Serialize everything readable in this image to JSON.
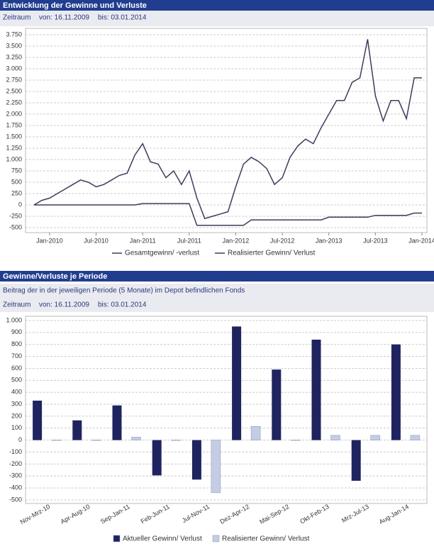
{
  "chart_data": [
    {
      "type": "line",
      "title": "Entwicklung der Gewinne und Verluste",
      "period": {
        "label": "Zeitraum",
        "from": "von: 16.11.2009",
        "to": "bis: 03.01.2014"
      },
      "x": [
        "Nov-2009",
        "Dec-2009",
        "Jan-2010",
        "Feb-2010",
        "Mar-2010",
        "Apr-2010",
        "May-2010",
        "Jun-2010",
        "Jul-2010",
        "Aug-2010",
        "Sep-2010",
        "Oct-2010",
        "Nov-2010",
        "Dec-2010",
        "Jan-2011",
        "Feb-2011",
        "Mar-2011",
        "Apr-2011",
        "May-2011",
        "Jun-2011",
        "Jul-2011",
        "Aug-2011",
        "Sep-2011",
        "Oct-2011",
        "Nov-2011",
        "Dec-2011",
        "Jan-2012",
        "Feb-2012",
        "Mar-2012",
        "Apr-2012",
        "May-2012",
        "Jun-2012",
        "Jul-2012",
        "Aug-2012",
        "Sep-2012",
        "Oct-2012",
        "Nov-2012",
        "Dec-2012",
        "Jan-2013",
        "Feb-2013",
        "Mar-2013",
        "Apr-2013",
        "May-2013",
        "Jun-2013",
        "Jul-2013",
        "Aug-2013",
        "Sep-2013",
        "Oct-2013",
        "Nov-2013",
        "Dec-2013",
        "Jan-2014"
      ],
      "xticks": [
        "Jan-2010",
        "Jul-2010",
        "Jan-2011",
        "Jul-2011",
        "Jan-2012",
        "Jul-2012",
        "Jan-2013",
        "Jul-2013",
        "Jan-2014"
      ],
      "ylim": [
        -500,
        3750
      ],
      "yticks": [
        -500,
        -250,
        0,
        250,
        500,
        750,
        {
          "value": 1000,
          "label": "1.000"
        },
        {
          "value": 1250,
          "label": "1.250"
        },
        {
          "value": 1500,
          "label": "1.500"
        },
        {
          "value": 1750,
          "label": "1.750"
        },
        {
          "value": 2000,
          "label": "2.000"
        },
        {
          "value": 2250,
          "label": "2.250"
        },
        {
          "value": 2500,
          "label": "2.500"
        },
        {
          "value": 2750,
          "label": "2.750"
        },
        {
          "value": 3000,
          "label": "3.000"
        },
        {
          "value": 3250,
          "label": "3.250"
        },
        {
          "value": 3500,
          "label": "3.500"
        },
        {
          "value": 3750,
          "label": "3.750"
        }
      ],
      "grid": true,
      "series": [
        {
          "name": "Gesamtgewinn/ -verlust",
          "color": "#3c3d5e",
          "values": [
            0,
            100,
            150,
            250,
            350,
            450,
            550,
            500,
            400,
            450,
            550,
            650,
            700,
            1100,
            1350,
            950,
            900,
            600,
            750,
            450,
            750,
            150,
            -300,
            -250,
            -200,
            -150,
            400,
            900,
            1050,
            950,
            800,
            450,
            600,
            1050,
            1300,
            1450,
            1350,
            1700,
            2000,
            2300,
            2300,
            2700,
            2800,
            3650,
            2400,
            1850,
            2300,
            2300,
            1900,
            2800,
            2800
          ]
        },
        {
          "name": "Realisierter Gewinn/ Verlust",
          "color": "#3c3d5e",
          "values": [
            0,
            0,
            0,
            0,
            0,
            0,
            0,
            0,
            0,
            0,
            0,
            0,
            0,
            0,
            30,
            30,
            30,
            30,
            30,
            30,
            30,
            -450,
            -450,
            -450,
            -450,
            -450,
            -450,
            -450,
            -330,
            -330,
            -330,
            -330,
            -330,
            -330,
            -330,
            -330,
            -330,
            -330,
            -270,
            -270,
            -270,
            -270,
            -270,
            -270,
            -230,
            -230,
            -230,
            -230,
            -230,
            -180,
            -180
          ]
        }
      ]
    },
    {
      "type": "bar",
      "title": "Gewinne/Verluste je Periode",
      "subtitle": "Beitrag der in der jeweiligen Periode (5 Monate) im Depot befindlichen Fonds",
      "period": {
        "label": "Zeitraum",
        "from": "von: 16.11.2009",
        "to": "bis: 03.01.2014"
      },
      "categories": [
        "Nov-Mrz-10",
        "Apr-Aug-10",
        "Sep-Jan-11",
        "Feb-Jun-11",
        "Jul-Nov-11",
        "Dez-Apr-12",
        "Mai-Sep-12",
        "Okt-Feb-13",
        "Mrz-Jul-13",
        "Aug-Jan-14"
      ],
      "ylim": [
        -500,
        1000
      ],
      "yticks": [
        -500,
        -400,
        -300,
        -200,
        -100,
        0,
        100,
        200,
        300,
        400,
        500,
        600,
        700,
        800,
        900,
        {
          "value": 1000,
          "label": "1.000"
        }
      ],
      "grid": true,
      "series": [
        {
          "name": "Aktueller Gewinn/ Verlust",
          "color": "#1f2460",
          "values": [
            330,
            165,
            290,
            -295,
            -330,
            950,
            590,
            840,
            -340,
            800
          ]
        },
        {
          "name": "Realisierter Gewinn/ Verlust",
          "color": "#c4cde3",
          "values": [
            0,
            0,
            25,
            0,
            -440,
            115,
            0,
            40,
            40,
            40
          ]
        }
      ]
    }
  ]
}
